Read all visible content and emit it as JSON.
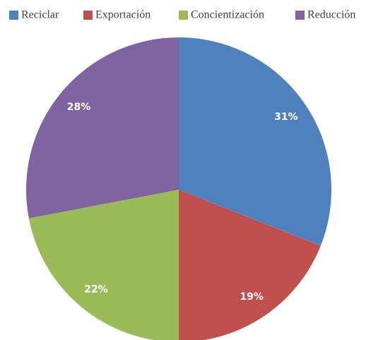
{
  "chart_data": {
    "type": "pie",
    "categories": [
      "Reciclar",
      "Exportación",
      "Concientización",
      "Reducción"
    ],
    "values": [
      31,
      19,
      22,
      28
    ],
    "value_labels": [
      "31%",
      "19%",
      "22%",
      "28%"
    ],
    "colors": [
      "#4f81bd",
      "#c0504d",
      "#9bbb59",
      "#8064a2"
    ],
    "legend": "top"
  }
}
